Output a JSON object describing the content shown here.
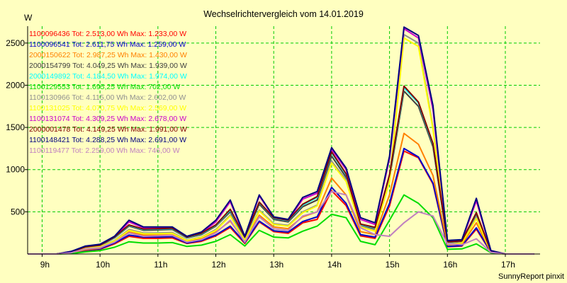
{
  "chart_data": {
    "type": "line",
    "title": "Wechselrichtervergleich vom 14.01.2019",
    "ylabel": "W",
    "footer": "SunnyReport pinxit",
    "xlim": [
      8.75,
      17.6
    ],
    "ylim": [
      0,
      2700
    ],
    "grid": true,
    "legend_placement": "top-left",
    "x_ticks": [
      {
        "value": 9,
        "label": "9h"
      },
      {
        "value": 10,
        "label": "10h"
      },
      {
        "value": 11,
        "label": "11h"
      },
      {
        "value": 12,
        "label": "12h"
      },
      {
        "value": 13,
        "label": "13h"
      },
      {
        "value": 14,
        "label": "14h"
      },
      {
        "value": 15,
        "label": "15h"
      },
      {
        "value": 16,
        "label": "16h"
      },
      {
        "value": 17,
        "label": "17h"
      }
    ],
    "y_ticks": [
      {
        "value": 500,
        "label": "500"
      },
      {
        "value": 1000,
        "label": "1000"
      },
      {
        "value": 1500,
        "label": "1500"
      },
      {
        "value": 2000,
        "label": "2000"
      },
      {
        "value": 2500,
        "label": "2500"
      }
    ],
    "x": [
      8.75,
      9.25,
      9.5,
      9.75,
      10.0,
      10.25,
      10.5,
      10.75,
      11.0,
      11.25,
      11.5,
      11.75,
      12.0,
      12.25,
      12.5,
      12.75,
      13.0,
      13.25,
      13.5,
      13.75,
      14.0,
      14.25,
      14.5,
      14.75,
      15.0,
      15.25,
      15.5,
      15.75,
      16.0,
      16.25,
      16.5,
      16.75,
      17.0,
      17.25,
      17.5
    ],
    "series": [
      {
        "name": "1100096436 Tot: 2.513,00 Wh Max: 1.233,00 W",
        "color": "#ff0000",
        "values": [
          0,
          0,
          10,
          40,
          55,
          120,
          210,
          185,
          185,
          190,
          125,
          150,
          215,
          315,
          125,
          380,
          265,
          245,
          370,
          410,
          750,
          575,
          215,
          185,
          570,
          1220,
          1140,
          830,
          85,
          95,
          295,
          20,
          0,
          0,
          0
        ]
      },
      {
        "name": "1100096541 Tot: 2.611,75 Wh Max: 1.259,00 W",
        "color": "#0000cc",
        "values": [
          0,
          0,
          10,
          45,
          60,
          130,
          225,
          200,
          200,
          205,
          130,
          160,
          225,
          330,
          135,
          390,
          275,
          260,
          385,
          440,
          790,
          600,
          230,
          200,
          600,
          1250,
          1150,
          840,
          90,
          100,
          310,
          20,
          0,
          0,
          0
        ]
      },
      {
        "name": "2000150622 Tot: 2.987,25 Wh Max: 1.430,00 W",
        "color": "#ff8000",
        "values": [
          0,
          0,
          15,
          50,
          70,
          150,
          260,
          225,
          225,
          225,
          150,
          180,
          260,
          390,
          150,
          460,
          320,
          300,
          440,
          500,
          900,
          700,
          265,
          230,
          700,
          1430,
          1300,
          930,
          110,
          115,
          370,
          25,
          0,
          0,
          0
        ]
      },
      {
        "name": "2000154799 Tot: 4.049,25 Wh Max: 1.939,00 W",
        "color": "#404040",
        "values": [
          0,
          0,
          25,
          80,
          100,
          190,
          330,
          280,
          285,
          290,
          190,
          230,
          330,
          500,
          190,
          590,
          410,
          380,
          560,
          640,
          1160,
          910,
          340,
          300,
          900,
          1930,
          1750,
          1270,
          140,
          150,
          470,
          30,
          0,
          0,
          0
        ]
      },
      {
        "name": "2000149892 Tot: 4.184,50 Wh Max: 1.974,00 W",
        "color": "#00ffff",
        "values": [
          0,
          0,
          25,
          85,
          105,
          195,
          340,
          290,
          295,
          300,
          195,
          240,
          340,
          520,
          195,
          610,
          425,
          395,
          580,
          670,
          1200,
          940,
          350,
          310,
          930,
          1970,
          1790,
          1300,
          145,
          155,
          485,
          30,
          0,
          0,
          0
        ]
      },
      {
        "name": "1100129553 Tot: 1.695,25 Wh Max: 702,00 W",
        "color": "#00dd00",
        "values": [
          0,
          0,
          5,
          25,
          40,
          80,
          145,
          130,
          130,
          135,
          90,
          105,
          150,
          230,
          95,
          280,
          200,
          190,
          270,
          330,
          470,
          430,
          150,
          110,
          400,
          700,
          600,
          430,
          55,
          60,
          120,
          15,
          0,
          0,
          0
        ]
      },
      {
        "name": "1100130966 Tot: 4.115,00 Wh Max: 2.602,00 W",
        "color": "#909090",
        "values": [
          0,
          0,
          20,
          70,
          90,
          160,
          290,
          250,
          250,
          255,
          165,
          200,
          290,
          460,
          165,
          520,
          360,
          340,
          500,
          580,
          1100,
          880,
          330,
          280,
          880,
          2600,
          2500,
          1500,
          120,
          135,
          430,
          30,
          0,
          0,
          0
        ]
      },
      {
        "name": "1100131025 Tot: 4.070,75 Wh Max: 2.569,00 W",
        "color": "#ffff00",
        "values": [
          0,
          0,
          20,
          65,
          85,
          155,
          280,
          240,
          240,
          245,
          160,
          195,
          280,
          450,
          160,
          510,
          350,
          330,
          490,
          570,
          1080,
          860,
          320,
          270,
          860,
          2560,
          2460,
          1480,
          115,
          130,
          420,
          25,
          0,
          0,
          0
        ]
      },
      {
        "name": "1100131074 Tot: 4.309,25 Wh Max: 2.678,00 W",
        "color": "#cc00cc",
        "values": [
          0,
          0,
          30,
          90,
          110,
          200,
          380,
          310,
          310,
          315,
          200,
          250,
          380,
          620,
          200,
          690,
          430,
          400,
          650,
          720,
          1240,
          1000,
          410,
          350,
          1130,
          2670,
          2560,
          1710,
          150,
          160,
          630,
          40,
          0,
          0,
          0
        ]
      },
      {
        "name": "2000001478 Tot: 4.149,25 Wh Max: 1.991,00 W",
        "color": "#800000",
        "values": [
          0,
          0,
          25,
          85,
          105,
          200,
          345,
          295,
          300,
          305,
          200,
          245,
          345,
          530,
          200,
          615,
          430,
          400,
          590,
          680,
          1210,
          950,
          355,
          315,
          940,
          1990,
          1800,
          1310,
          145,
          155,
          490,
          30,
          0,
          0,
          0
        ]
      },
      {
        "name": "1100148421 Tot: 4.288,25 Wh Max: 2.691,00 W",
        "color": "#000080",
        "values": [
          0,
          0,
          30,
          95,
          115,
          210,
          400,
          320,
          320,
          320,
          210,
          260,
          400,
          640,
          210,
          700,
          440,
          410,
          670,
          740,
          1260,
          1020,
          430,
          370,
          1160,
          2690,
          2590,
          1760,
          160,
          170,
          660,
          40,
          0,
          0,
          0
        ]
      },
      {
        "name": "1100119477 Tot: 2.259,00 Wh Max: 746,00 W",
        "color": "#c080c0",
        "values": [
          0,
          0,
          15,
          60,
          75,
          140,
          250,
          210,
          215,
          220,
          140,
          170,
          250,
          400,
          140,
          440,
          300,
          280,
          450,
          500,
          740,
          700,
          310,
          230,
          210,
          370,
          500,
          450,
          120,
          110,
          180,
          20,
          0,
          0,
          0
        ]
      }
    ]
  }
}
